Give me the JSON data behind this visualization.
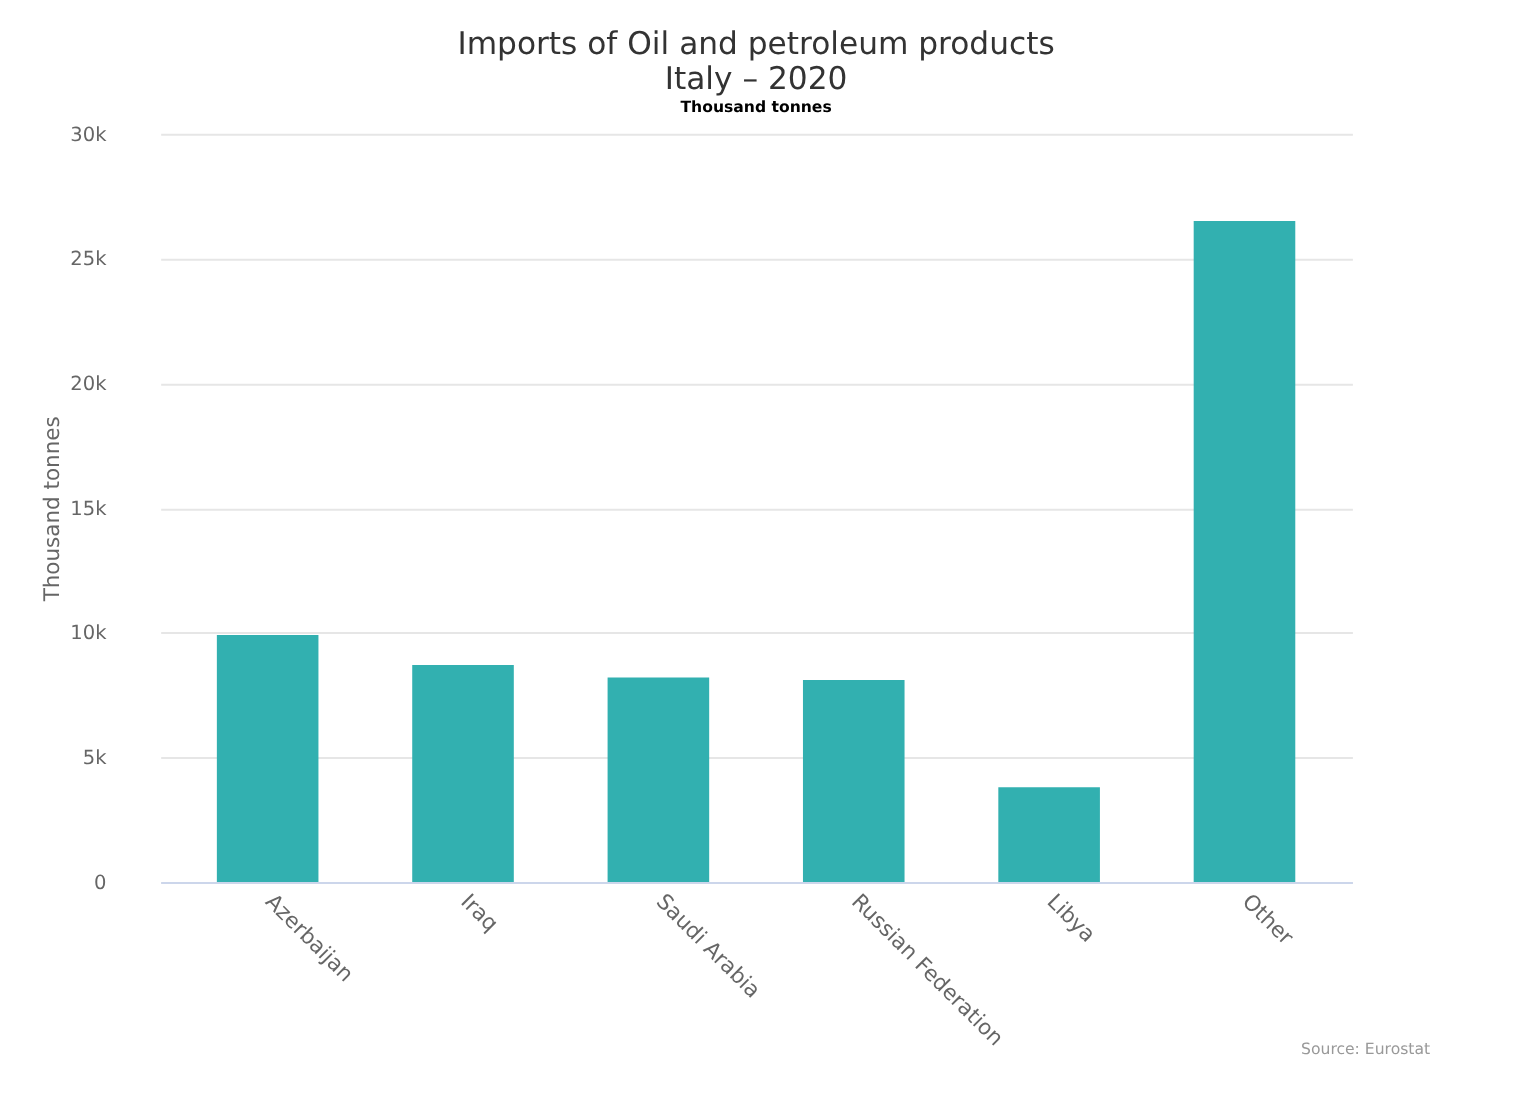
{
  "chart_data": {
    "type": "bar",
    "title": "Imports of Oil and petroleum products\nItaly – 2020",
    "subtitle": "Thousand tonnes",
    "ylabel": "Thousand tonnes",
    "categories": [
      "Azerbaijan",
      "Iraq",
      "Saudi Arabia",
      "Russian Federation",
      "Libya",
      "Other"
    ],
    "values": [
      9900,
      8700,
      8200,
      8100,
      3800,
      26500
    ],
    "color": "#32b0b0",
    "ylim": [
      0,
      30000
    ],
    "yticks": [
      0,
      {
        "value": 5000,
        "label": "5k"
      },
      {
        "value": 10000,
        "label": "10k"
      },
      {
        "value": 15000,
        "label": "15k"
      },
      {
        "value": 20000,
        "label": "20k"
      },
      {
        "value": 25000,
        "label": "25k"
      },
      {
        "value": 30000,
        "label": "30k"
      }
    ],
    "grid": "y",
    "annotations": [
      "Source: Eurostat"
    ]
  }
}
